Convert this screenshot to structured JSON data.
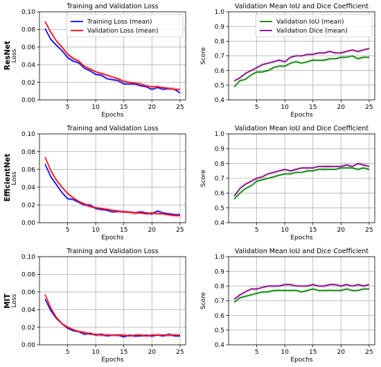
{
  "row_labels": [
    "ResNet",
    "EfficientNet",
    "MIT"
  ],
  "colors": {
    "training_loss": "#0000ff",
    "validation_loss": "#ff0000",
    "validation_iou": "#008000",
    "validation_dice": "#800080",
    "grid": "#b0b0b0"
  },
  "chart_data": [
    {
      "type": "line",
      "model": "ResNet",
      "title": "Training and Validation Loss",
      "xlabel": "Epochs",
      "ylabel": "Loss",
      "xlim": [
        0,
        26
      ],
      "ylim": [
        0,
        0.1
      ],
      "xticks": [
        5,
        10,
        15,
        20,
        25
      ],
      "yticks": [
        "0.00",
        "0.02",
        "0.04",
        "0.06",
        "0.08",
        "0.10"
      ],
      "grid": true,
      "legend": "top-right",
      "x": [
        1,
        2,
        3,
        4,
        5,
        6,
        7,
        8,
        9,
        10,
        11,
        12,
        13,
        14,
        15,
        16,
        17,
        18,
        19,
        20,
        21,
        22,
        23,
        24,
        25
      ],
      "series": [
        {
          "name": "Training Loss (mean)",
          "color_key": "training_loss",
          "values": [
            0.081,
            0.069,
            0.062,
            0.056,
            0.048,
            0.044,
            0.042,
            0.036,
            0.033,
            0.029,
            0.028,
            0.024,
            0.023,
            0.022,
            0.018,
            0.018,
            0.018,
            0.016,
            0.015,
            0.012,
            0.014,
            0.012,
            0.013,
            0.012,
            0.008
          ]
        },
        {
          "name": "Validation Loss (mean)",
          "color_key": "validation_loss",
          "values": [
            0.089,
            0.077,
            0.067,
            0.06,
            0.052,
            0.047,
            0.044,
            0.038,
            0.035,
            0.032,
            0.03,
            0.028,
            0.026,
            0.024,
            0.021,
            0.02,
            0.019,
            0.018,
            0.016,
            0.015,
            0.015,
            0.014,
            0.013,
            0.012,
            0.012
          ]
        }
      ]
    },
    {
      "type": "line",
      "model": "ResNet",
      "title": "Validation Mean IoU and Dice Coefficient",
      "xlabel": "Epochs",
      "ylabel": "Score",
      "xlim": [
        0,
        26
      ],
      "ylim": [
        0.4,
        1.0
      ],
      "xticks": [
        5,
        10,
        15,
        20,
        25
      ],
      "yticks": [
        "0.4",
        "0.5",
        "0.6",
        "0.7",
        "0.8",
        "0.9",
        "1.0"
      ],
      "grid": true,
      "legend": "top-right",
      "x": [
        1,
        2,
        3,
        4,
        5,
        6,
        7,
        8,
        9,
        10,
        11,
        12,
        13,
        14,
        15,
        16,
        17,
        18,
        19,
        20,
        21,
        22,
        23,
        24,
        25
      ],
      "series": [
        {
          "name": "Validation IoU (mean)",
          "color_key": "validation_iou",
          "values": [
            0.49,
            0.53,
            0.54,
            0.57,
            0.59,
            0.59,
            0.6,
            0.62,
            0.63,
            0.63,
            0.65,
            0.66,
            0.65,
            0.66,
            0.67,
            0.67,
            0.67,
            0.68,
            0.68,
            0.69,
            0.69,
            0.7,
            0.68,
            0.69,
            0.69
          ]
        },
        {
          "name": "Validation Dice (mean)",
          "color_key": "validation_dice",
          "values": [
            0.53,
            0.55,
            0.58,
            0.6,
            0.62,
            0.64,
            0.65,
            0.66,
            0.67,
            0.66,
            0.69,
            0.7,
            0.7,
            0.71,
            0.71,
            0.72,
            0.72,
            0.73,
            0.72,
            0.72,
            0.73,
            0.74,
            0.73,
            0.74,
            0.75
          ]
        }
      ]
    },
    {
      "type": "line",
      "model": "EfficientNet",
      "title": "Training and Validation Loss",
      "xlabel": "Epochs",
      "ylabel": "Loss",
      "xlim": [
        0,
        26
      ],
      "ylim": [
        0,
        0.1
      ],
      "xticks": [
        5,
        10,
        15,
        20,
        25
      ],
      "yticks": [
        "0.00",
        "0.02",
        "0.04",
        "0.06",
        "0.08",
        "0.10"
      ],
      "grid": true,
      "x": [
        1,
        2,
        3,
        4,
        5,
        6,
        7,
        8,
        9,
        10,
        11,
        12,
        13,
        14,
        15,
        16,
        17,
        18,
        19,
        20,
        21,
        22,
        23,
        24,
        25
      ],
      "series": [
        {
          "name": "Training Loss (mean)",
          "color_key": "training_loss",
          "values": [
            0.066,
            0.052,
            0.043,
            0.034,
            0.027,
            0.026,
            0.023,
            0.02,
            0.02,
            0.016,
            0.015,
            0.014,
            0.012,
            0.013,
            0.012,
            0.012,
            0.011,
            0.012,
            0.011,
            0.01,
            0.013,
            0.011,
            0.01,
            0.009,
            0.009
          ]
        },
        {
          "name": "Validation Loss (mean)",
          "color_key": "validation_loss",
          "values": [
            0.074,
            0.059,
            0.048,
            0.04,
            0.033,
            0.028,
            0.024,
            0.021,
            0.018,
            0.017,
            0.016,
            0.015,
            0.014,
            0.013,
            0.012,
            0.012,
            0.011,
            0.011,
            0.01,
            0.011,
            0.01,
            0.01,
            0.009,
            0.008,
            0.008
          ]
        }
      ]
    },
    {
      "type": "line",
      "model": "EfficientNet",
      "title": "Validation Mean IoU and Dice Coefficient",
      "xlabel": "Epochs",
      "ylabel": "Score",
      "xlim": [
        0,
        26
      ],
      "ylim": [
        0.4,
        1.0
      ],
      "xticks": [
        5,
        10,
        15,
        20,
        25
      ],
      "yticks": [
        "0.4",
        "0.5",
        "0.6",
        "0.7",
        "0.8",
        "0.9",
        "1.0"
      ],
      "grid": true,
      "x": [
        1,
        2,
        3,
        4,
        5,
        6,
        7,
        8,
        9,
        10,
        11,
        12,
        13,
        14,
        15,
        16,
        17,
        18,
        19,
        20,
        21,
        22,
        23,
        24,
        25
      ],
      "series": [
        {
          "name": "Validation IoU (mean)",
          "color_key": "validation_iou",
          "values": [
            0.56,
            0.6,
            0.63,
            0.65,
            0.68,
            0.69,
            0.7,
            0.71,
            0.72,
            0.73,
            0.73,
            0.74,
            0.74,
            0.75,
            0.75,
            0.76,
            0.76,
            0.76,
            0.76,
            0.77,
            0.77,
            0.77,
            0.76,
            0.77,
            0.76
          ]
        },
        {
          "name": "Validation Dice (mean)",
          "color_key": "validation_dice",
          "values": [
            0.58,
            0.63,
            0.66,
            0.68,
            0.7,
            0.71,
            0.73,
            0.74,
            0.75,
            0.76,
            0.75,
            0.76,
            0.77,
            0.77,
            0.77,
            0.78,
            0.78,
            0.78,
            0.78,
            0.78,
            0.79,
            0.78,
            0.8,
            0.79,
            0.78
          ]
        }
      ]
    },
    {
      "type": "line",
      "model": "MIT",
      "title": "Training and Validation Loss",
      "xlabel": "Epochs",
      "ylabel": "Loss",
      "xlim": [
        0,
        26
      ],
      "ylim": [
        0,
        0.1
      ],
      "xticks": [
        5,
        10,
        15,
        20,
        25
      ],
      "yticks": [
        "0.00",
        "0.02",
        "0.04",
        "0.06",
        "0.08",
        "0.10"
      ],
      "grid": true,
      "x": [
        1,
        2,
        3,
        4,
        5,
        6,
        7,
        8,
        9,
        10,
        11,
        12,
        13,
        14,
        15,
        16,
        17,
        18,
        19,
        20,
        21,
        22,
        23,
        24,
        25
      ],
      "series": [
        {
          "name": "Training Loss (mean)",
          "color_key": "training_loss",
          "values": [
            0.052,
            0.039,
            0.03,
            0.024,
            0.019,
            0.016,
            0.015,
            0.012,
            0.013,
            0.011,
            0.012,
            0.01,
            0.011,
            0.011,
            0.009,
            0.011,
            0.01,
            0.01,
            0.011,
            0.01,
            0.011,
            0.01,
            0.012,
            0.01,
            0.01
          ]
        },
        {
          "name": "Validation Loss (mean)",
          "color_key": "validation_loss",
          "values": [
            0.057,
            0.042,
            0.031,
            0.024,
            0.02,
            0.017,
            0.015,
            0.014,
            0.012,
            0.012,
            0.011,
            0.011,
            0.011,
            0.011,
            0.011,
            0.01,
            0.011,
            0.011,
            0.01,
            0.011,
            0.011,
            0.011,
            0.011,
            0.011,
            0.011
          ]
        }
      ]
    },
    {
      "type": "line",
      "model": "MIT",
      "title": "Validation Mean IoU and Dice Coefficient",
      "xlabel": "Epochs",
      "ylabel": "Score",
      "xlim": [
        0,
        26
      ],
      "ylim": [
        0.4,
        1.0
      ],
      "xticks": [
        5,
        10,
        15,
        20,
        25
      ],
      "yticks": [
        "0.4",
        "0.5",
        "0.6",
        "0.7",
        "0.8",
        "0.9",
        "1.0"
      ],
      "grid": true,
      "x": [
        1,
        2,
        3,
        4,
        5,
        6,
        7,
        8,
        9,
        10,
        11,
        12,
        13,
        14,
        15,
        16,
        17,
        18,
        19,
        20,
        21,
        22,
        23,
        24,
        25
      ],
      "series": [
        {
          "name": "Validation IoU (mean)",
          "color_key": "validation_iou",
          "values": [
            0.69,
            0.72,
            0.73,
            0.74,
            0.75,
            0.76,
            0.76,
            0.77,
            0.77,
            0.77,
            0.77,
            0.77,
            0.76,
            0.77,
            0.78,
            0.77,
            0.77,
            0.77,
            0.77,
            0.77,
            0.78,
            0.77,
            0.77,
            0.78,
            0.78
          ]
        },
        {
          "name": "Validation Dice (mean)",
          "color_key": "validation_dice",
          "values": [
            0.71,
            0.74,
            0.76,
            0.78,
            0.78,
            0.79,
            0.8,
            0.8,
            0.8,
            0.81,
            0.81,
            0.8,
            0.8,
            0.8,
            0.81,
            0.8,
            0.8,
            0.81,
            0.81,
            0.8,
            0.81,
            0.8,
            0.81,
            0.8,
            0.81
          ]
        }
      ]
    }
  ]
}
